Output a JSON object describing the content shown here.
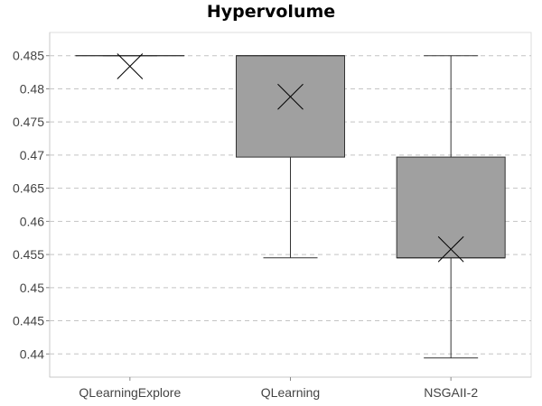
{
  "chart_data": {
    "type": "boxplot",
    "title": "Hypervolume",
    "xlabel": "",
    "ylabel": "",
    "ylim": [
      0.4365,
      0.4885
    ],
    "yticks": [
      "0.44",
      "0.445",
      "0.45",
      "0.455",
      "0.46",
      "0.465",
      "0.47",
      "0.475",
      "0.48",
      "0.485"
    ],
    "grid": true,
    "categories": [
      "QLearningExplore",
      "QLearning",
      "NSGAII-2"
    ],
    "boxes": [
      {
        "name": "QLearningExplore",
        "min": 0.485,
        "q1": 0.485,
        "median": 0.485,
        "q3": 0.485,
        "max": 0.485,
        "mean": 0.4834
      },
      {
        "name": "QLearning",
        "min": 0.4545,
        "q1": 0.4697,
        "median": 0.485,
        "q3": 0.485,
        "max": 0.485,
        "mean": 0.4788
      },
      {
        "name": "NSGAII-2",
        "min": 0.4394,
        "q1": 0.4545,
        "median": 0.4545,
        "q3": 0.4697,
        "max": 0.485,
        "mean": 0.4558
      }
    ],
    "colors": {
      "box_fill": "#a0a0a0",
      "box_stroke": "#333333",
      "grid": "#c4c4c4",
      "axis": "#c8c8c8"
    }
  }
}
